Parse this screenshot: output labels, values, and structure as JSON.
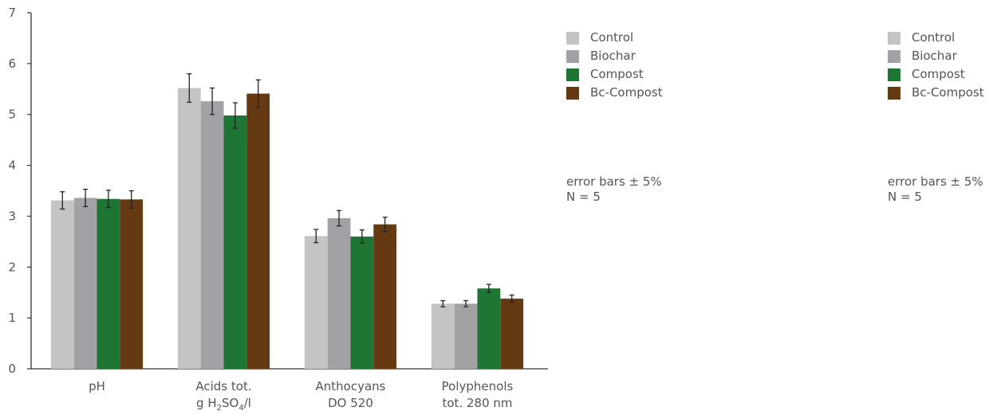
{
  "chart_data": {
    "type": "bar",
    "categories": [
      {
        "lines": [
          [
            {
              "t": "pH"
            }
          ]
        ]
      },
      {
        "lines": [
          [
            {
              "t": "Acids tot."
            }
          ],
          [
            {
              "t": "g H"
            },
            {
              "t": "2",
              "sub": true
            },
            {
              "t": "SO"
            },
            {
              "t": "4",
              "sub": true
            },
            {
              "t": "/l"
            }
          ]
        ]
      },
      {
        "lines": [
          [
            {
              "t": "Anthocyans"
            }
          ],
          [
            {
              "t": "DO 520"
            }
          ]
        ]
      },
      {
        "lines": [
          [
            {
              "t": "Polyphenols"
            }
          ],
          [
            {
              "t": "tot. 280 nm"
            }
          ]
        ]
      }
    ],
    "series": [
      {
        "name": "Control",
        "color": "#c4c4c6",
        "values": [
          3.31,
          5.52,
          2.61,
          1.28
        ],
        "errors": [
          0.17,
          0.28,
          0.13,
          0.06
        ]
      },
      {
        "name": "Biochar",
        "color": "#a2a2a6",
        "values": [
          3.36,
          5.26,
          2.96,
          1.28
        ],
        "errors": [
          0.17,
          0.26,
          0.15,
          0.06
        ]
      },
      {
        "name": "Compost",
        "color": "#1f7534",
        "values": [
          3.34,
          4.98,
          2.6,
          1.58
        ],
        "errors": [
          0.17,
          0.25,
          0.13,
          0.08
        ]
      },
      {
        "name": "Bc-Compost",
        "color": "#653a13",
        "values": [
          3.33,
          5.41,
          2.84,
          1.38
        ],
        "errors": [
          0.17,
          0.27,
          0.14,
          0.07
        ]
      }
    ],
    "ylim": [
      0,
      7
    ],
    "yticks": [
      0,
      1,
      2,
      3,
      4,
      5,
      6,
      7
    ],
    "grid": false,
    "legend_placement": "right",
    "title": "",
    "xlabel": "",
    "ylabel": ""
  },
  "legend_left": {
    "items": [
      {
        "label": "Control",
        "color": "#c4c4c6"
      },
      {
        "label": "Biochar",
        "color": "#a2a2a6"
      },
      {
        "label": "Compost",
        "color": "#1f7534"
      },
      {
        "label": "Bc-Compost",
        "color": "#653a13"
      }
    ],
    "note_line1": "error bars ± 5%",
    "note_line2": "N = 5"
  },
  "legend_right": {
    "items": [
      {
        "label": "Control",
        "color": "#c4c4c6"
      },
      {
        "label": "Biochar",
        "color": "#a2a2a6"
      },
      {
        "label": "Compost",
        "color": "#1f7534"
      },
      {
        "label": "Bc-Compost",
        "color": "#653a13"
      }
    ],
    "note_line1": "error bars ± 5%",
    "note_line2": "N = 5"
  }
}
